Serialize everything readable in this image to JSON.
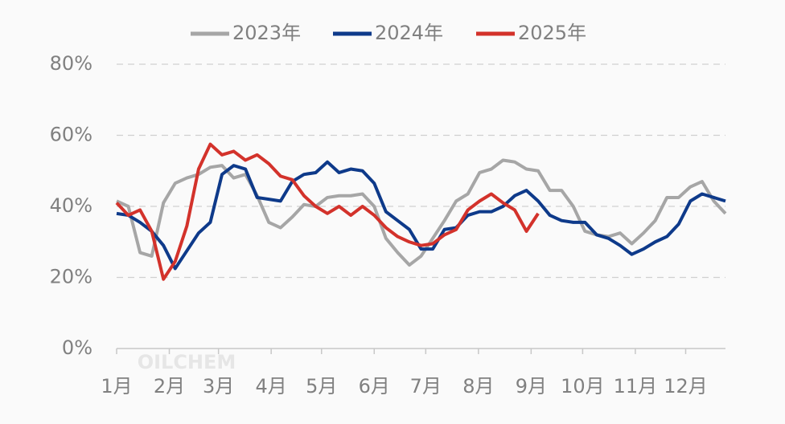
{
  "chart_data": {
    "type": "line",
    "watermark": "OILCHEM",
    "x": [
      0,
      1,
      2,
      3,
      4,
      5,
      6,
      7,
      8,
      9,
      10,
      11,
      12,
      13,
      14,
      15,
      16,
      17,
      18,
      19,
      20,
      21,
      22,
      23,
      24,
      25,
      26,
      27,
      28,
      29,
      30,
      31,
      32,
      33,
      34,
      35,
      36,
      37,
      38,
      39,
      40,
      41,
      42,
      43,
      44,
      45,
      46,
      47,
      48,
      49,
      50,
      51,
      52
    ],
    "xlim": [
      0,
      52
    ],
    "xticks": [
      {
        "value": 0,
        "label": "1月"
      },
      {
        "value": 4.5,
        "label": "2月"
      },
      {
        "value": 8.7,
        "label": "3月"
      },
      {
        "value": 13.2,
        "label": "4月"
      },
      {
        "value": 17.5,
        "label": "5月"
      },
      {
        "value": 22,
        "label": "6月"
      },
      {
        "value": 26.4,
        "label": "7月"
      },
      {
        "value": 30.9,
        "label": "8月"
      },
      {
        "value": 35.4,
        "label": "9月"
      },
      {
        "value": 39.8,
        "label": "10月"
      },
      {
        "value": 44.3,
        "label": "11月"
      },
      {
        "value": 48.6,
        "label": "12月"
      }
    ],
    "ylim": [
      0,
      80
    ],
    "yticks": [
      {
        "value": 0,
        "label": "0%"
      },
      {
        "value": 20,
        "label": "20%"
      },
      {
        "value": 40,
        "label": "40%"
      },
      {
        "value": 60,
        "label": "60%"
      },
      {
        "value": 80,
        "label": "80%"
      }
    ],
    "grid": true,
    "legend": "top",
    "series": [
      {
        "name": "2023年",
        "color": "#a6a6a6",
        "values": [
          41.5,
          40,
          27,
          26,
          41,
          46.5,
          48,
          49,
          51,
          51.5,
          48,
          49,
          43,
          35.5,
          34,
          37,
          40.5,
          40,
          42.5,
          43,
          43,
          43.5,
          40,
          31,
          27,
          23.5,
          26,
          31,
          36,
          41.5,
          43.5,
          49.5,
          50.5,
          53,
          52.5,
          50.5,
          50,
          44.5,
          44.5,
          40,
          33,
          32,
          31.5,
          32.5,
          29.5,
          32.5,
          36,
          42.5,
          42.5,
          45.5,
          47,
          41.5,
          38
        ]
      },
      {
        "name": "2024年",
        "color": "#0e3a8a",
        "values": [
          38,
          37.5,
          35.5,
          33,
          29,
          22.5,
          27.5,
          32.5,
          35.5,
          49,
          51.5,
          50.5,
          42.5,
          42,
          41.5,
          47,
          49,
          49.5,
          52.5,
          49.5,
          50.5,
          50,
          46.5,
          38.5,
          36,
          33.5,
          28,
          28,
          33.5,
          34,
          37.5,
          38.5,
          38.5,
          40,
          43,
          44.5,
          41.5,
          37.5,
          36,
          35.5,
          35.5,
          32,
          31,
          29,
          26.5,
          28,
          30,
          31.5,
          35,
          41.5,
          43.5,
          42.5,
          41.5
        ]
      },
      {
        "name": "2025年",
        "color": "#d3322b",
        "values": [
          41,
          37.5,
          39,
          33,
          19.5,
          24.5,
          34.5,
          50.5,
          57.5,
          54.5,
          55.5,
          53,
          54.5,
          52,
          48.5,
          47.5,
          43,
          40,
          38,
          40,
          37.5,
          40,
          37.5,
          34,
          31.5,
          30,
          29,
          29.5,
          32,
          33.5,
          39,
          41.5,
          43.5,
          41,
          39,
          33,
          38,
          null,
          null,
          null,
          null,
          null,
          null,
          null,
          null,
          null,
          null,
          null,
          null,
          null,
          null,
          null,
          null
        ]
      }
    ]
  }
}
